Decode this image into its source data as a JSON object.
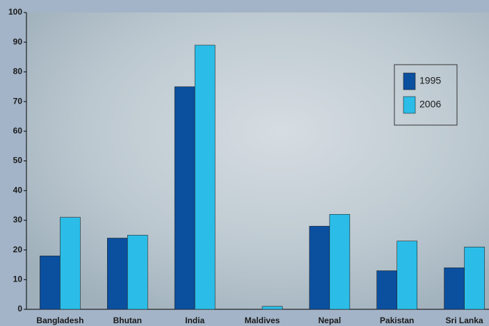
{
  "chart_data": {
    "type": "bar",
    "categories": [
      "Bangladesh",
      "Bhutan",
      "India",
      "Maldives",
      "Nepal",
      "Pakistan",
      "Sri Lanka"
    ],
    "series": [
      {
        "name": "1995",
        "color": "#0b4f9f",
        "values": [
          18,
          24,
          75,
          0,
          28,
          13,
          14
        ]
      },
      {
        "name": "2006",
        "color": "#2bbde8",
        "values": [
          31,
          25,
          89,
          1,
          32,
          23,
          21
        ]
      }
    ],
    "ylim": [
      0,
      100
    ],
    "yticks": [
      0,
      10,
      20,
      30,
      40,
      50,
      60,
      70,
      80,
      90,
      100
    ]
  }
}
